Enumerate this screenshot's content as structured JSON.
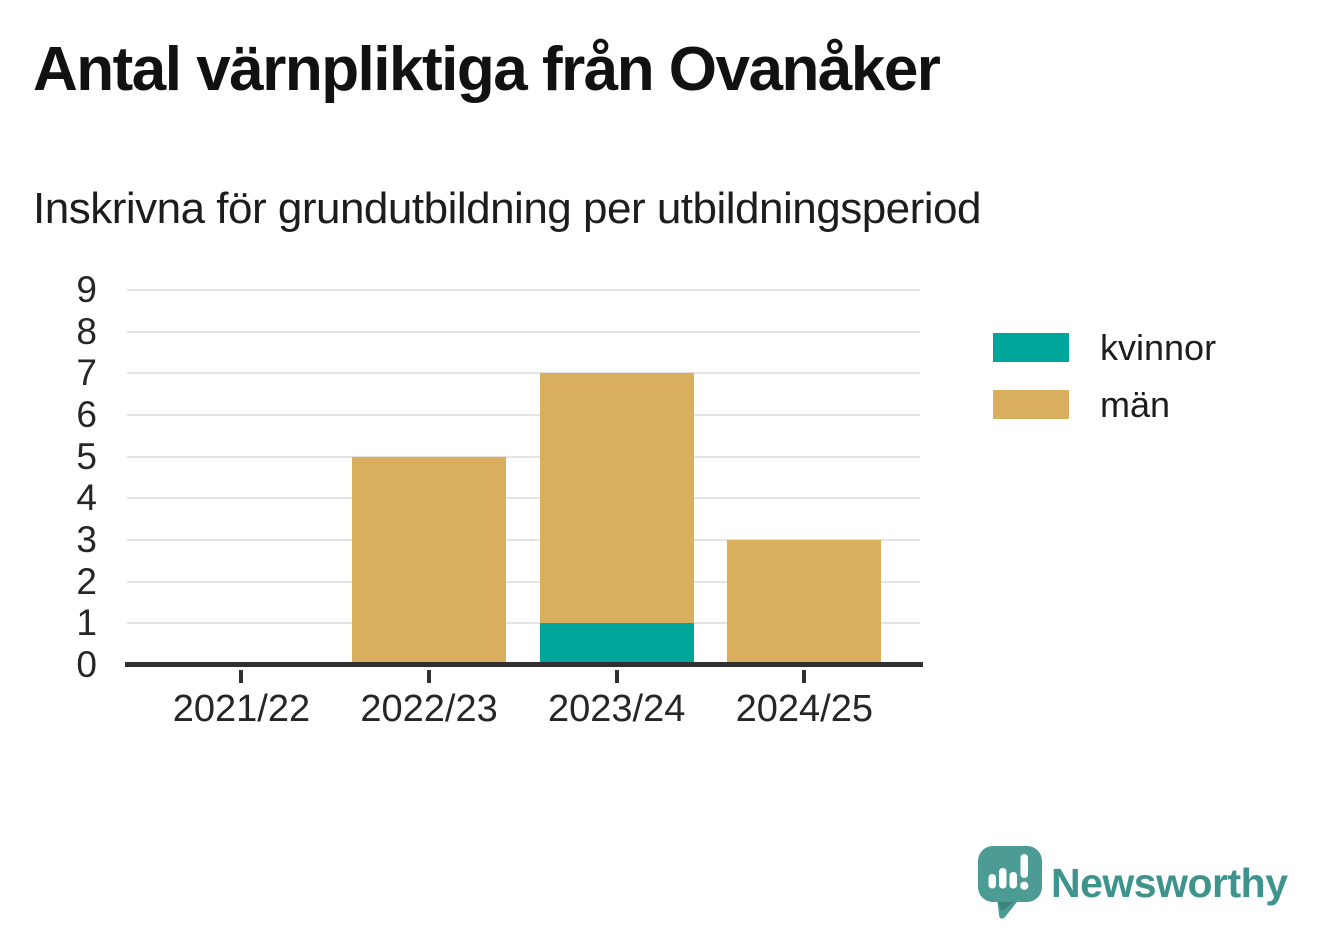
{
  "header": {
    "title": "Antal värnpliktiga från Ovanåker",
    "subtitle": "Inskrivna för grundutbildning per utbildningsperiod"
  },
  "chart_data": {
    "type": "bar",
    "stacked": true,
    "title": "Antal värnpliktiga från Ovanåker",
    "subtitle": "Inskrivna för grundutbildning per utbildningsperiod",
    "categories": [
      "2021/22",
      "2022/23",
      "2023/24",
      "2024/25"
    ],
    "series": [
      {
        "name": "kvinnor",
        "color": "#00A69A",
        "values": [
          0,
          0,
          1,
          0
        ]
      },
      {
        "name": "män",
        "color": "#D9AE5C",
        "values": [
          0,
          5,
          6,
          3
        ]
      }
    ],
    "totals": [
      0,
      5,
      7,
      3
    ],
    "xlabel": "",
    "ylabel": "",
    "ylim": [
      0,
      9
    ],
    "yticks": [
      0,
      1,
      2,
      3,
      4,
      5,
      6,
      7,
      8,
      9
    ],
    "grid": true,
    "legend_position": "right"
  },
  "footer": {
    "brand": "Newsworthy",
    "brand_color": "#3E948D",
    "logo_color": "#4C9B94",
    "logo_shadow_color": "#3C837C"
  }
}
